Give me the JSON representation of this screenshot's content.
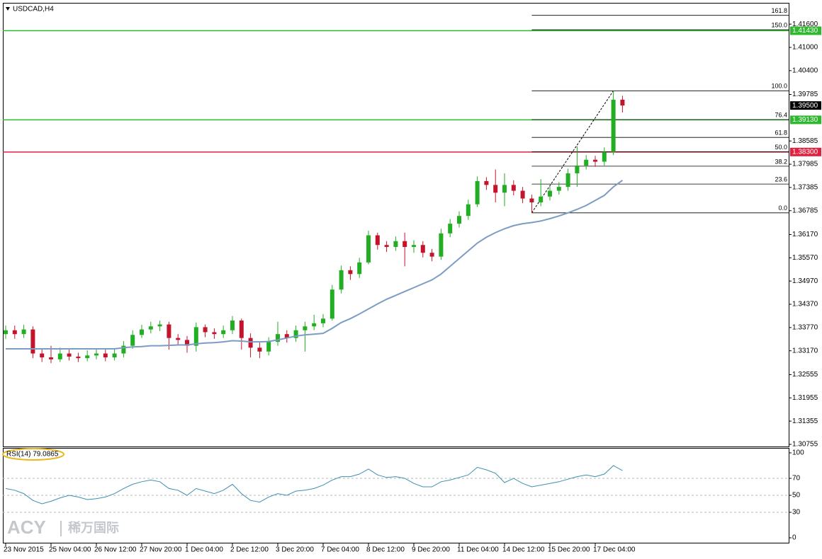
{
  "chart_data": [
    {
      "type": "candlestick",
      "title": "USDCAD,H4",
      "categories": [
        "23 Nov 2015",
        null,
        null,
        null,
        null,
        "25 Nov 04:00",
        null,
        null,
        null,
        null,
        "26 Nov 12:00",
        null,
        null,
        null,
        null,
        "27 Nov 20:00",
        null,
        null,
        null,
        null,
        "1 Dec 04:00",
        null,
        null,
        null,
        null,
        "2 Dec 12:00",
        null,
        null,
        null,
        null,
        "3 Dec 20:00",
        null,
        null,
        null,
        null,
        "7 Dec 04:00",
        null,
        null,
        null,
        null,
        "8 Dec 12:00",
        null,
        null,
        null,
        null,
        "9 Dec 20:00",
        null,
        null,
        null,
        null,
        "11 Dec 04:00",
        null,
        null,
        null,
        null,
        "14 Dec 12:00",
        null,
        null,
        null,
        null,
        "15 Dec 20:00",
        null,
        null,
        null,
        null,
        "17 Dec 04:00",
        null,
        null,
        null
      ],
      "open": [
        1.336,
        1.337,
        1.336,
        1.3372,
        1.331,
        1.33,
        1.3295,
        1.331,
        1.3302,
        1.3298,
        1.3305,
        1.331,
        1.33,
        1.331,
        1.333,
        1.3358,
        1.3372,
        1.338,
        1.3385,
        1.335,
        1.3345,
        1.333,
        1.3378,
        1.3365,
        1.336,
        1.337,
        1.3395,
        1.335,
        1.3325,
        1.3315,
        1.334,
        1.336,
        1.335,
        1.337,
        1.338,
        1.3388,
        1.34,
        1.3475,
        1.3525,
        1.3515,
        1.3545,
        1.3615,
        1.359,
        1.3585,
        1.36,
        1.3585,
        1.359,
        1.357,
        1.356,
        1.362,
        1.3645,
        1.3665,
        1.3695,
        1.3755,
        1.3745,
        1.3725,
        1.3745,
        1.373,
        1.371,
        1.37,
        1.3715,
        1.373,
        1.374,
        1.3775,
        1.3795,
        1.381,
        1.3805,
        1.383,
        1.3965
      ],
      "high": [
        1.3382,
        1.3382,
        1.3384,
        1.338,
        1.3322,
        1.333,
        1.3325,
        1.332,
        1.3312,
        1.3318,
        1.3322,
        1.332,
        1.3322,
        1.3342,
        1.337,
        1.3384,
        1.3392,
        1.3395,
        1.3392,
        1.336,
        1.3355,
        1.339,
        1.3385,
        1.3375,
        1.3382,
        1.3407,
        1.34,
        1.3362,
        1.3338,
        1.3352,
        1.3392,
        1.337,
        1.3382,
        1.3392,
        1.341,
        1.3412,
        1.3487,
        1.3537,
        1.3535,
        1.3557,
        1.3627,
        1.3622,
        1.36,
        1.3612,
        1.3622,
        1.3602,
        1.36,
        1.358,
        1.3632,
        1.3657,
        1.3677,
        1.3707,
        1.3767,
        1.3765,
        1.3785,
        1.3775,
        1.3757,
        1.374,
        1.372,
        1.376,
        1.3742,
        1.3752,
        1.3787,
        1.3845,
        1.3822,
        1.382,
        1.3842,
        1.3988,
        1.3975
      ],
      "low": [
        1.3348,
        1.3348,
        1.335,
        1.3298,
        1.3288,
        1.3285,
        1.3288,
        1.3292,
        1.3288,
        1.329,
        1.3295,
        1.329,
        1.3292,
        1.33,
        1.3322,
        1.335,
        1.3362,
        1.3368,
        1.332,
        1.3332,
        1.3312,
        1.3315,
        1.3352,
        1.3348,
        1.335,
        1.336,
        1.332,
        1.33,
        1.3298,
        1.3305,
        1.333,
        1.3338,
        1.334,
        1.3315,
        1.337,
        1.3378,
        1.3395,
        1.3465,
        1.35,
        1.3505,
        1.354,
        1.3578,
        1.3572,
        1.3575,
        1.3535,
        1.357,
        1.3558,
        1.3548,
        1.3552,
        1.361,
        1.3635,
        1.3655,
        1.3688,
        1.3732,
        1.37,
        1.369,
        1.3718,
        1.3698,
        1.3673,
        1.369,
        1.3705,
        1.372,
        1.373,
        1.374,
        1.3785,
        1.3792,
        1.3795,
        1.3822,
        1.3932
      ],
      "close": [
        1.337,
        1.336,
        1.3372,
        1.331,
        1.33,
        1.3295,
        1.331,
        1.3302,
        1.3298,
        1.3305,
        1.331,
        1.33,
        1.331,
        1.333,
        1.3358,
        1.3372,
        1.338,
        1.3385,
        1.335,
        1.3345,
        1.333,
        1.3378,
        1.3365,
        1.336,
        1.337,
        1.3395,
        1.335,
        1.3325,
        1.3315,
        1.334,
        1.336,
        1.335,
        1.337,
        1.338,
        1.3388,
        1.34,
        1.3475,
        1.3525,
        1.3515,
        1.3545,
        1.3615,
        1.359,
        1.3585,
        1.36,
        1.3585,
        1.359,
        1.357,
        1.356,
        1.362,
        1.3645,
        1.3665,
        1.3695,
        1.3755,
        1.3745,
        1.3725,
        1.3745,
        1.373,
        1.371,
        1.37,
        1.3715,
        1.373,
        1.374,
        1.3775,
        1.3795,
        1.381,
        1.3805,
        1.383,
        1.3965,
        1.395
      ],
      "up_color": "#22ae22",
      "down_color": "#c4142b",
      "moving_average": {
        "color": "#7b9cc4",
        "values": [
          1.3322,
          1.3322,
          1.3322,
          1.3322,
          1.3322,
          1.3322,
          1.3322,
          1.3322,
          1.3322,
          1.3322,
          1.3322,
          1.3322,
          1.3322,
          1.3325,
          1.3327,
          1.3328,
          1.333,
          1.333,
          1.3331,
          1.3332,
          1.3332,
          1.3335,
          1.3337,
          1.3338,
          1.334,
          1.3343,
          1.3342,
          1.334,
          1.334,
          1.3341,
          1.3345,
          1.335,
          1.3355,
          1.3358,
          1.336,
          1.3362,
          1.3375,
          1.339,
          1.34,
          1.3412,
          1.3425,
          1.3438,
          1.345,
          1.346,
          1.347,
          1.348,
          1.349,
          1.35,
          1.3515,
          1.3535,
          1.3555,
          1.3575,
          1.3595,
          1.361,
          1.3622,
          1.3632,
          1.364,
          1.3645,
          1.3648,
          1.3652,
          1.3658,
          1.3665,
          1.3673,
          1.3682,
          1.3692,
          1.3705,
          1.3718,
          1.374,
          1.3757
        ]
      },
      "levels": [
        {
          "value": 1.4143,
          "label": "1.41430",
          "color": "#2eb82e"
        },
        {
          "value": 1.3913,
          "label": "1.39130",
          "color": "#2eb82e"
        },
        {
          "value": 1.383,
          "label": "1.38300",
          "color": "#e0203f"
        }
      ],
      "current_price": {
        "value": 1.395,
        "label": "1.39500"
      },
      "fibonacci": {
        "low": 1.3673,
        "high": 1.3988,
        "start": 58,
        "end": 67,
        "color": "#000000",
        "levels": [
          {
            "value": 161.8,
            "label": "161.8"
          },
          {
            "value": 150,
            "label": "150.0"
          },
          {
            "value": 100,
            "label": "100.0"
          },
          76.4,
          61.8,
          {
            "value": 50,
            "label": "50.0"
          },
          38.2,
          23.6,
          {
            "value": 0,
            "label": "0.0"
          }
        ]
      },
      "ylim": [
        1.307,
        1.4215
      ],
      "yticks": [
        {
          "value": 1.416,
          "label": "1.41600"
        },
        {
          "value": 1.41,
          "label": "1.41000"
        },
        {
          "value": 1.404,
          "label": "1.40400"
        },
        {
          "value": 1.39785,
          "label": "1.39785"
        },
        {
          "value": 1.38585,
          "label": "1.38585"
        },
        {
          "value": 1.37985,
          "label": "1.37985"
        },
        {
          "value": 1.37385,
          "label": "1.37385"
        },
        {
          "value": 1.36785,
          "label": "1.36785"
        },
        {
          "value": 1.3617,
          "label": "1.36170"
        },
        {
          "value": 1.3557,
          "label": "1.35570"
        },
        {
          "value": 1.3497,
          "label": "1.34970"
        },
        {
          "value": 1.3437,
          "label": "1.34370"
        },
        {
          "value": 1.3377,
          "label": "1.33770"
        },
        {
          "value": 1.3317,
          "label": "1.33170"
        },
        {
          "value": 1.32555,
          "label": "1.32555"
        },
        {
          "value": 1.31955,
          "label": "1.31955"
        },
        {
          "value": 1.31355,
          "label": "1.31355"
        },
        {
          "value": 1.30755,
          "label": "1.30755"
        }
      ]
    },
    {
      "type": "line",
      "title": "RSI(14) 79.0865",
      "color": "#3d8fb0",
      "values": [
        58,
        56,
        52,
        44,
        40,
        43,
        47,
        50,
        48,
        45,
        46,
        48,
        52,
        58,
        63,
        66,
        68,
        66,
        58,
        56,
        50,
        58,
        55,
        52,
        56,
        63,
        52,
        44,
        42,
        48,
        52,
        50,
        55,
        56,
        58,
        62,
        68,
        72,
        72,
        75,
        81,
        74,
        71,
        72,
        70,
        64,
        60,
        60,
        66,
        68,
        71,
        74,
        83,
        80,
        76,
        65,
        70,
        64,
        60,
        62,
        64,
        66,
        69,
        72,
        74,
        72,
        75,
        85,
        79.0865
      ],
      "ylim": [
        0,
        100
      ],
      "yticks": [
        100,
        70,
        50,
        30,
        0
      ],
      "levels": [
        70,
        50,
        30
      ]
    }
  ],
  "watermark": {
    "brand": "ACY",
    "name": "稀万国际"
  }
}
